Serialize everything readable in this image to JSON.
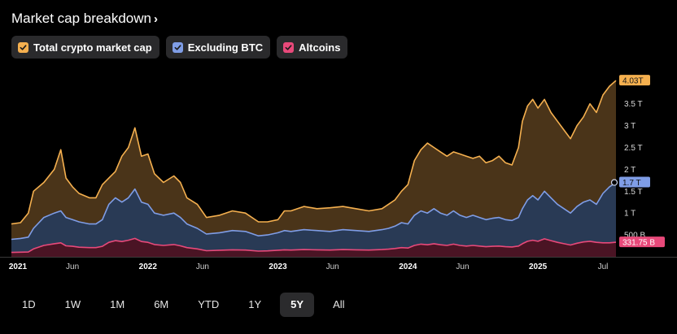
{
  "header": {
    "title": "Market cap breakdown"
  },
  "legend": [
    {
      "label": "Total crypto market cap",
      "color": "#f5b04f",
      "icon": "check-icon"
    },
    {
      "label": "Excluding BTC",
      "color": "#7f9de6",
      "icon": "check-icon"
    },
    {
      "label": "Altcoins",
      "color": "#e8497a",
      "icon": "check-icon"
    }
  ],
  "ranges": [
    {
      "label": "1D",
      "active": false
    },
    {
      "label": "1W",
      "active": false
    },
    {
      "label": "1M",
      "active": false
    },
    {
      "label": "6M",
      "active": false
    },
    {
      "label": "YTD",
      "active": false
    },
    {
      "label": "1Y",
      "active": false
    },
    {
      "label": "5Y",
      "active": true
    },
    {
      "label": "All",
      "active": false
    }
  ],
  "chart_data": {
    "type": "area",
    "x_unit": "fraction of year (decimal year)",
    "xlim": [
      2020.95,
      2025.6
    ],
    "ylim_billions": [
      0,
      4200
    ],
    "y_ticks": [
      {
        "value": 500,
        "label": "500 B"
      },
      {
        "value": 1000,
        "label": "1 T"
      },
      {
        "value": 1500,
        "label": "1.5 T"
      },
      {
        "value": 2000,
        "label": "2 T"
      },
      {
        "value": 2500,
        "label": "2.5 T"
      },
      {
        "value": 3000,
        "label": "3 T"
      },
      {
        "value": 3500,
        "label": "3.5 T"
      }
    ],
    "x_ticks": [
      {
        "value": 2021.0,
        "label": "2021",
        "bold": true
      },
      {
        "value": 2021.42,
        "label": "Jun",
        "bold": false
      },
      {
        "value": 2022.0,
        "label": "2022",
        "bold": true
      },
      {
        "value": 2022.42,
        "label": "Jun",
        "bold": false
      },
      {
        "value": 2023.0,
        "label": "2023",
        "bold": true
      },
      {
        "value": 2023.42,
        "label": "Jun",
        "bold": false
      },
      {
        "value": 2024.0,
        "label": "2024",
        "bold": true
      },
      {
        "value": 2024.42,
        "label": "Jun",
        "bold": false
      },
      {
        "value": 2025.0,
        "label": "2025",
        "bold": true
      },
      {
        "value": 2025.5,
        "label": "Jul",
        "bold": false
      }
    ],
    "end_labels": [
      {
        "series": "Total crypto market cap",
        "label": "4.03T"
      },
      {
        "series": "Excluding BTC",
        "label": "1.7 T"
      },
      {
        "series": "Altcoins",
        "label": "331.75 B"
      }
    ],
    "x": [
      2020.95,
      2021.02,
      2021.08,
      2021.12,
      2021.2,
      2021.28,
      2021.33,
      2021.37,
      2021.42,
      2021.47,
      2021.55,
      2021.6,
      2021.65,
      2021.7,
      2021.75,
      2021.8,
      2021.85,
      2021.9,
      2021.95,
      2022.0,
      2022.05,
      2022.12,
      2022.2,
      2022.25,
      2022.3,
      2022.38,
      2022.45,
      2022.55,
      2022.65,
      2022.75,
      2022.85,
      2022.92,
      2023.0,
      2023.05,
      2023.1,
      2023.2,
      2023.3,
      2023.4,
      2023.5,
      2023.6,
      2023.7,
      2023.8,
      2023.85,
      2023.9,
      2023.95,
      2024.0,
      2024.05,
      2024.1,
      2024.15,
      2024.2,
      2024.25,
      2024.3,
      2024.35,
      2024.4,
      2024.45,
      2024.5,
      2024.55,
      2024.6,
      2024.65,
      2024.7,
      2024.75,
      2024.8,
      2024.85,
      2024.88,
      2024.92,
      2024.96,
      2025.0,
      2025.05,
      2025.1,
      2025.15,
      2025.2,
      2025.25,
      2025.3,
      2025.35,
      2025.4,
      2025.45,
      2025.5,
      2025.55,
      2025.6
    ],
    "series": [
      {
        "name": "Total crypto market cap",
        "color": "#f5b04f",
        "values": [
          750,
          780,
          1000,
          1500,
          1700,
          2000,
          2450,
          1800,
          1600,
          1450,
          1350,
          1350,
          1650,
          1800,
          1950,
          2300,
          2500,
          2950,
          2300,
          2350,
          1900,
          1700,
          1850,
          1700,
          1350,
          1200,
          900,
          950,
          1050,
          1000,
          800,
          800,
          850,
          1050,
          1050,
          1150,
          1100,
          1120,
          1150,
          1100,
          1050,
          1100,
          1200,
          1300,
          1500,
          1650,
          2200,
          2450,
          2600,
          2500,
          2400,
          2300,
          2400,
          2350,
          2300,
          2250,
          2300,
          2150,
          2200,
          2300,
          2150,
          2100,
          2500,
          3100,
          3450,
          3600,
          3400,
          3600,
          3300,
          3100,
          2900,
          2700,
          3000,
          3200,
          3500,
          3300,
          3700,
          3900,
          4030
        ]
      },
      {
        "name": "Excluding BTC",
        "color": "#7f9de6",
        "values": [
          400,
          420,
          450,
          650,
          900,
          1000,
          1050,
          900,
          850,
          800,
          750,
          750,
          850,
          1200,
          1350,
          1250,
          1350,
          1550,
          1250,
          1200,
          1000,
          950,
          1000,
          900,
          750,
          650,
          520,
          550,
          600,
          580,
          480,
          500,
          550,
          600,
          580,
          620,
          600,
          580,
          620,
          600,
          580,
          620,
          650,
          700,
          780,
          750,
          950,
          1050,
          1000,
          1100,
          1000,
          950,
          1050,
          950,
          900,
          950,
          900,
          850,
          880,
          900,
          850,
          830,
          900,
          1100,
          1300,
          1400,
          1300,
          1500,
          1350,
          1200,
          1100,
          1000,
          1150,
          1250,
          1300,
          1200,
          1450,
          1600,
          1700
        ]
      },
      {
        "name": "Altcoins",
        "color": "#e8497a",
        "values": [
          100,
          105,
          110,
          180,
          260,
          300,
          320,
          250,
          240,
          220,
          210,
          210,
          240,
          330,
          370,
          350,
          380,
          420,
          350,
          330,
          280,
          260,
          280,
          250,
          210,
          180,
          140,
          150,
          160,
          155,
          130,
          135,
          150,
          160,
          155,
          165,
          160,
          155,
          165,
          160,
          155,
          165,
          175,
          190,
          210,
          200,
          260,
          290,
          275,
          300,
          275,
          260,
          290,
          260,
          245,
          260,
          245,
          230,
          240,
          245,
          230,
          225,
          245,
          300,
          355,
          380,
          355,
          410,
          370,
          330,
          300,
          270,
          310,
          340,
          355,
          330,
          320,
          320,
          331.75
        ]
      }
    ]
  }
}
